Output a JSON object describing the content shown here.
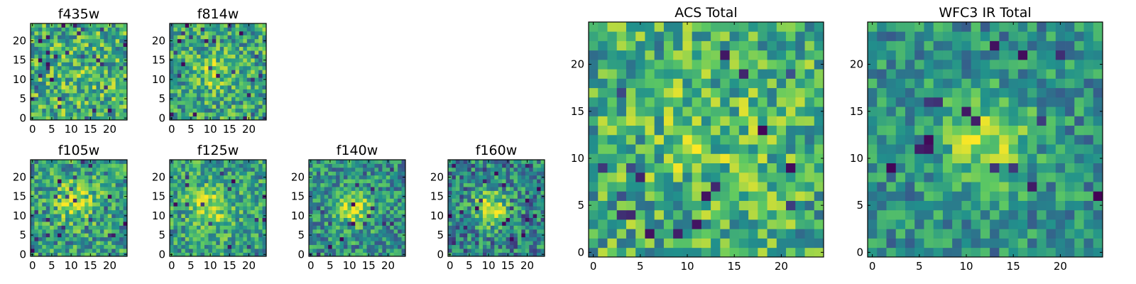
{
  "chart_data": [
    {
      "type": "heatmap",
      "title": "f435w",
      "grid_size": 25,
      "xlim": [
        -0.5,
        24.5
      ],
      "ylim": [
        -0.5,
        24.5
      ],
      "xticks": [
        0,
        5,
        10,
        15,
        20
      ],
      "yticks": [
        0,
        5,
        10,
        15,
        20
      ],
      "origin": "lower",
      "description_level": "uniform noise",
      "pattern": {
        "seed": 11,
        "center": [
          12,
          12
        ],
        "sigma": 6,
        "peak": 0.05,
        "base": 0.63,
        "noise": 0.3,
        "dark_count": 30
      }
    },
    {
      "type": "heatmap",
      "title": "f814w",
      "grid_size": 25,
      "xlim": [
        -0.5,
        24.5
      ],
      "ylim": [
        -0.5,
        24.5
      ],
      "xticks": [
        0,
        5,
        10,
        15,
        20
      ],
      "yticks": [
        0,
        5,
        10,
        15,
        20
      ],
      "origin": "lower",
      "pattern": {
        "seed": 23,
        "center": [
          11,
          12
        ],
        "sigma": 3,
        "peak": 0.25,
        "base": 0.6,
        "noise": 0.28,
        "dark_count": 25
      }
    },
    {
      "type": "heatmap",
      "title": "f105w",
      "grid_size": 25,
      "xlim": [
        -0.5,
        24.5
      ],
      "ylim": [
        -0.5,
        24.5
      ],
      "xticks": [
        0,
        5,
        10,
        15,
        20
      ],
      "yticks": [
        0,
        5,
        10,
        15,
        20
      ],
      "origin": "lower",
      "pattern": {
        "seed": 37,
        "center": [
          11,
          14
        ],
        "sigma": 4,
        "peak": 0.3,
        "base": 0.55,
        "noise": 0.28,
        "dark_count": 22
      }
    },
    {
      "type": "heatmap",
      "title": "f125w",
      "grid_size": 25,
      "xlim": [
        -0.5,
        24.5
      ],
      "ylim": [
        -0.5,
        24.5
      ],
      "xticks": [
        0,
        5,
        10,
        15,
        20
      ],
      "yticks": [
        0,
        5,
        10,
        15,
        20
      ],
      "origin": "lower",
      "pattern": {
        "seed": 41,
        "center": [
          10,
          12
        ],
        "sigma": 4,
        "peak": 0.3,
        "base": 0.56,
        "noise": 0.26,
        "dark_count": 15
      }
    },
    {
      "type": "heatmap",
      "title": "f140w",
      "grid_size": 25,
      "xlim": [
        -0.5,
        24.5
      ],
      "ylim": [
        -0.5,
        24.5
      ],
      "xticks": [
        0,
        5,
        10,
        15,
        20
      ],
      "yticks": [
        0,
        5,
        10,
        15,
        20
      ],
      "origin": "lower",
      "pattern": {
        "seed": 53,
        "center": [
          11,
          12
        ],
        "sigma": 3.5,
        "peak": 0.38,
        "base": 0.5,
        "noise": 0.26,
        "dark_count": 20
      }
    },
    {
      "type": "heatmap",
      "title": "f160w",
      "grid_size": 25,
      "xlim": [
        -0.5,
        24.5
      ],
      "ylim": [
        -0.5,
        24.5
      ],
      "xticks": [
        0,
        5,
        10,
        15,
        20
      ],
      "yticks": [
        0,
        5,
        10,
        15,
        20
      ],
      "origin": "lower",
      "pattern": {
        "seed": 67,
        "center": [
          11,
          12
        ],
        "sigma": 3.5,
        "peak": 0.4,
        "base": 0.45,
        "noise": 0.28,
        "dark_count": 28
      }
    },
    {
      "type": "heatmap",
      "title": "ACS Total",
      "grid_size": 25,
      "xlim": [
        -0.5,
        24.5
      ],
      "ylim": [
        -0.5,
        24.5
      ],
      "xticks": [
        0,
        5,
        10,
        15,
        20
      ],
      "yticks": [
        0,
        5,
        10,
        15,
        20
      ],
      "origin": "lower",
      "pattern": {
        "seed": 79,
        "center": [
          12,
          12
        ],
        "sigma": 5,
        "peak": 0.12,
        "base": 0.62,
        "noise": 0.28,
        "dark_count": 18
      }
    },
    {
      "type": "heatmap",
      "title": "WFC3 IR Total",
      "grid_size": 25,
      "xlim": [
        -0.5,
        24.5
      ],
      "ylim": [
        -0.5,
        24.5
      ],
      "xticks": [
        0,
        5,
        10,
        15,
        20
      ],
      "yticks": [
        0,
        5,
        10,
        15,
        20
      ],
      "origin": "lower",
      "pattern": {
        "seed": 97,
        "center": [
          12,
          12
        ],
        "sigma": 3.5,
        "peak": 0.35,
        "base": 0.5,
        "noise": 0.22,
        "dark_count": 16
      }
    }
  ],
  "colormap": [
    "#440154",
    "#3b528b",
    "#21918c",
    "#5ec962",
    "#fde725"
  ]
}
